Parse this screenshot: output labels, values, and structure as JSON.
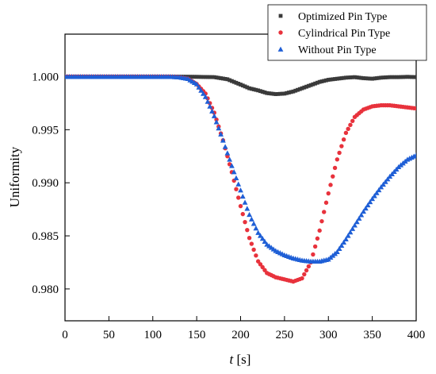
{
  "chart_data": {
    "type": "scatter",
    "title": "",
    "xlabel_var": "t",
    "xlabel_unit": "[s]",
    "ylabel": "Uniformity",
    "xlim": [
      0,
      400
    ],
    "ylim": [
      0.977,
      1.004
    ],
    "xticks": [
      "0",
      "50",
      "100",
      "150",
      "200",
      "250",
      "300",
      "350",
      "400"
    ],
    "yticks": [
      "0.980",
      "0.985",
      "0.990",
      "0.995",
      "1.000"
    ],
    "grid": false,
    "legend_position": "top-right",
    "series": [
      {
        "name": "Optimized Pin Type",
        "marker": "square",
        "color": "#3a3a3a",
        "points": [
          [
            0,
            1.0
          ],
          [
            120,
            1.0
          ],
          [
            150,
            0.99998
          ],
          [
            170,
            0.99995
          ],
          [
            185,
            0.99975
          ],
          [
            200,
            0.99925
          ],
          [
            210,
            0.9989
          ],
          [
            220,
            0.9987
          ],
          [
            230,
            0.99845
          ],
          [
            240,
            0.99835
          ],
          [
            250,
            0.9984
          ],
          [
            260,
            0.9986
          ],
          [
            270,
            0.9989
          ],
          [
            280,
            0.9992
          ],
          [
            290,
            0.9995
          ],
          [
            300,
            0.9997
          ],
          [
            310,
            0.9998
          ],
          [
            320,
            0.9999
          ],
          [
            330,
            0.99995
          ],
          [
            340,
            0.99985
          ],
          [
            350,
            0.9998
          ],
          [
            360,
            0.9999
          ],
          [
            370,
            0.99995
          ],
          [
            380,
            0.99995
          ],
          [
            390,
            0.99998
          ],
          [
            400,
            0.99995
          ]
        ]
      },
      {
        "name": "Cylindrical Pin Type",
        "marker": "circle",
        "color": "#e8323c",
        "points": [
          [
            0,
            1.0
          ],
          [
            120,
            1.0
          ],
          [
            130,
            0.99995
          ],
          [
            140,
            0.9998
          ],
          [
            150,
            0.9993
          ],
          [
            160,
            0.9984
          ],
          [
            170,
            0.9966
          ],
          [
            180,
            0.994
          ],
          [
            190,
            0.991
          ],
          [
            200,
            0.9878
          ],
          [
            210,
            0.9848
          ],
          [
            220,
            0.9826
          ],
          [
            230,
            0.9815
          ],
          [
            240,
            0.9811
          ],
          [
            250,
            0.9809
          ],
          [
            260,
            0.9807
          ],
          [
            270,
            0.981
          ],
          [
            280,
            0.9825
          ],
          [
            290,
            0.9855
          ],
          [
            300,
            0.989
          ],
          [
            310,
            0.9922
          ],
          [
            320,
            0.9947
          ],
          [
            330,
            0.9962
          ],
          [
            340,
            0.9969
          ],
          [
            350,
            0.9972
          ],
          [
            360,
            0.9973
          ],
          [
            370,
            0.9973
          ],
          [
            380,
            0.9972
          ],
          [
            390,
            0.9971
          ],
          [
            400,
            0.997
          ]
        ]
      },
      {
        "name": "Without Pin Type",
        "marker": "triangle",
        "color": "#1f5fd6",
        "points": [
          [
            0,
            1.0
          ],
          [
            120,
            1.0
          ],
          [
            130,
            0.99995
          ],
          [
            140,
            0.9998
          ],
          [
            150,
            0.9993
          ],
          [
            160,
            0.9981
          ],
          [
            170,
            0.9963
          ],
          [
            180,
            0.994
          ],
          [
            190,
            0.9916
          ],
          [
            200,
            0.9893
          ],
          [
            210,
            0.987
          ],
          [
            220,
            0.9853
          ],
          [
            230,
            0.9842
          ],
          [
            240,
            0.9836
          ],
          [
            250,
            0.9832
          ],
          [
            260,
            0.9829
          ],
          [
            270,
            0.9827
          ],
          [
            280,
            0.9826
          ],
          [
            290,
            0.9826
          ],
          [
            300,
            0.9828
          ],
          [
            310,
            0.9835
          ],
          [
            320,
            0.9847
          ],
          [
            330,
            0.986
          ],
          [
            340,
            0.9873
          ],
          [
            350,
            0.9885
          ],
          [
            360,
            0.9896
          ],
          [
            370,
            0.9906
          ],
          [
            380,
            0.9915
          ],
          [
            390,
            0.9922
          ],
          [
            400,
            0.9926
          ]
        ]
      }
    ]
  }
}
